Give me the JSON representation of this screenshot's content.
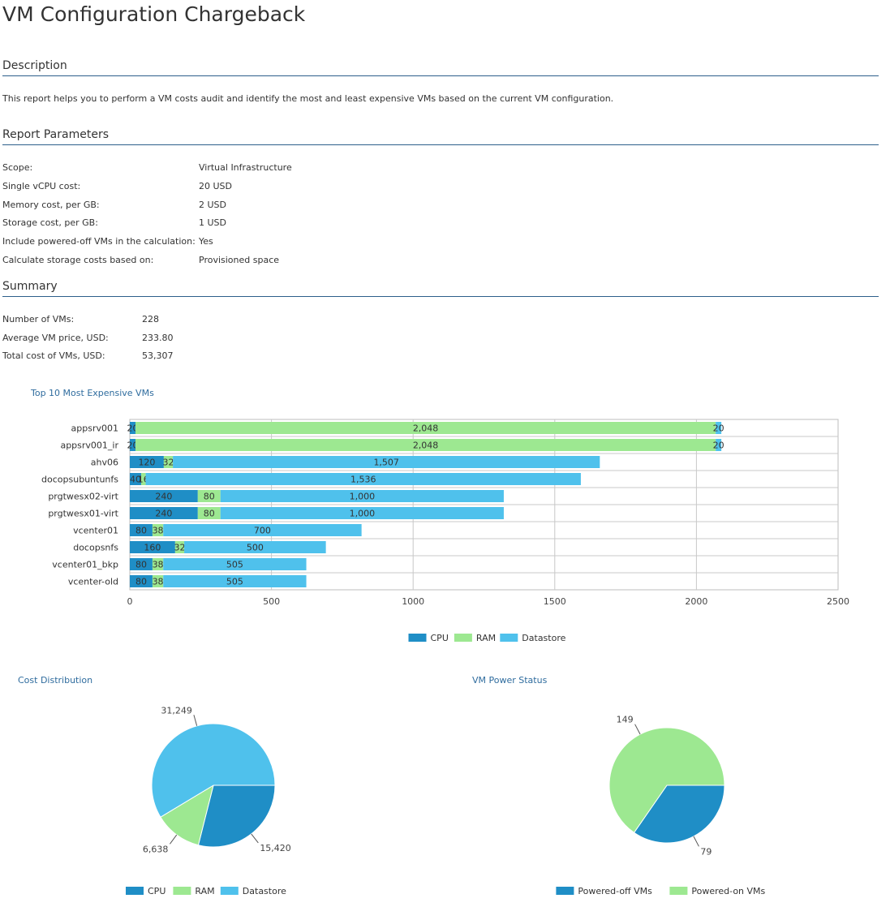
{
  "title": "VM Configuration Chargeback",
  "description": {
    "header": "Description",
    "text": "This report helps you to perform a VM costs audit and identify the most and least expensive VMs based on the current VM configuration."
  },
  "parameters": {
    "header": "Report Parameters",
    "rows": [
      {
        "label": "Scope:",
        "value": "Virtual Infrastructure"
      },
      {
        "label": "Single vCPU cost:",
        "value": "20 USD"
      },
      {
        "label": "Memory cost, per GB:",
        "value": "2 USD"
      },
      {
        "label": "Storage cost, per GB:",
        "value": "1 USD"
      },
      {
        "label": "Include powered-off VMs in the calculation:",
        "value": "Yes"
      },
      {
        "label": "Calculate storage costs based on:",
        "value": "Provisioned space"
      }
    ]
  },
  "summary": {
    "header": "Summary",
    "rows": [
      {
        "label": "Number of VMs:",
        "value": "228"
      },
      {
        "label": "Average VM price, USD:",
        "value": "233.80"
      },
      {
        "label": "Total cost of VMs, USD:",
        "value": "53,307"
      }
    ]
  },
  "colors": {
    "cpu": "#1f8ec6",
    "ram": "#9de891",
    "datastore": "#4fc1ec",
    "header_rule": "#2d5f8b",
    "chart_title": "#2f6c9e"
  },
  "chart_data": [
    {
      "type": "bar",
      "orientation": "horizontal",
      "stacked": true,
      "title": "Top 10 Most Expensive VMs",
      "categories": [
        "appsrv001",
        "appsrv001_ir",
        "ahv06",
        "docopsubuntunfs",
        "prgtwesx02-virt",
        "prgtwesx01-virt",
        "vcenter01",
        "docopsnfs",
        "vcenter01_bkp",
        "vcenter-old"
      ],
      "series": [
        {
          "name": "CPU",
          "values": [
            20,
            20,
            120,
            40,
            240,
            240,
            80,
            160,
            80,
            80
          ],
          "labels": [
            "20",
            "20",
            "120",
            "40",
            "240",
            "240",
            "80",
            "160",
            "80",
            "80"
          ]
        },
        {
          "name": "RAM",
          "values": [
            2048,
            2048,
            32,
            16,
            80,
            80,
            38,
            32,
            38,
            38
          ],
          "labels": [
            "2,048",
            "2,048",
            "32",
            "16",
            "80",
            "80",
            "38",
            "32",
            "38",
            "38"
          ]
        },
        {
          "name": "Datastore",
          "values": [
            20,
            20,
            1507,
            1536,
            1000,
            1000,
            700,
            500,
            505,
            505
          ],
          "labels": [
            "20",
            "20",
            "1,507",
            "1,536",
            "1,000",
            "1,000",
            "700",
            "500",
            "505",
            "505"
          ]
        }
      ],
      "xlim": [
        0,
        2500
      ],
      "ticks": [
        "0",
        "500",
        "1000",
        "1500",
        "2000",
        "2500"
      ],
      "tick_values": [
        0,
        500,
        1000,
        1500,
        2000,
        2500
      ],
      "grid": true,
      "legend": "bottom"
    },
    {
      "type": "pie",
      "title": "Cost Distribution",
      "categories": [
        "CPU",
        "RAM",
        "Datastore"
      ],
      "values": [
        15420,
        6638,
        31249
      ],
      "labels": [
        "15,420",
        "6,638",
        "31,249"
      ],
      "legend": "bottom"
    },
    {
      "type": "pie",
      "title": "VM Power Status",
      "categories": [
        "Powered-off VMs",
        "Powered-on VMs"
      ],
      "values": [
        79,
        149
      ],
      "labels": [
        "79",
        "149"
      ],
      "legend": "bottom"
    }
  ]
}
